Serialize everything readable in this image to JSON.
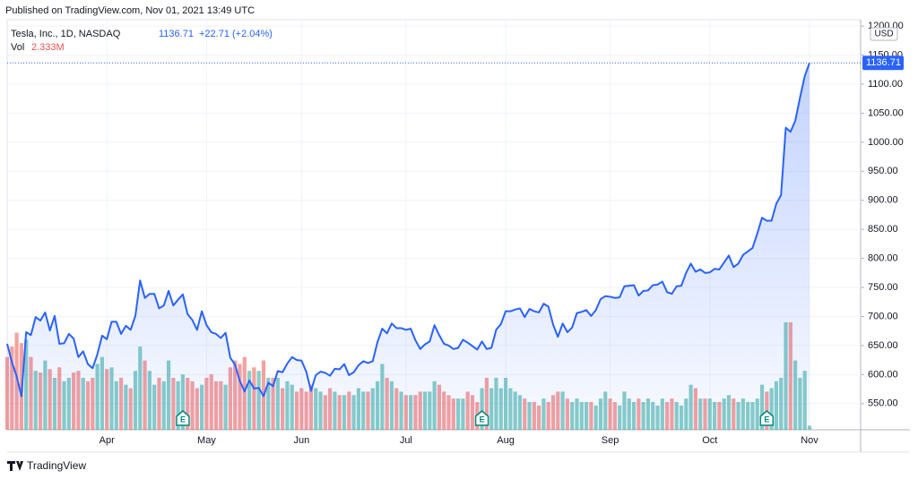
{
  "chart_data": {
    "type": "line",
    "published": "Published on TradingView.com, Nov 01, 2021 13:49 UTC",
    "symbol": "Tesla, Inc., 1D, NASDAQ",
    "change": "+22.71 (+2.04%)",
    "volume_title": "Vol",
    "volume_label": "2.333M",
    "currency": "USD",
    "earnings_marker": "E",
    "brand": "TradingView",
    "categories": [
      null,
      null,
      null,
      null,
      null,
      null,
      null,
      null,
      null,
      null,
      null,
      null,
      null,
      null,
      null,
      null,
      null,
      null,
      null,
      null,
      null,
      "Apr",
      null,
      null,
      null,
      null,
      null,
      null,
      null,
      null,
      null,
      null,
      null,
      null,
      null,
      null,
      null,
      null,
      null,
      null,
      null,
      null,
      "May",
      null,
      null,
      null,
      null,
      null,
      null,
      null,
      null,
      null,
      null,
      null,
      null,
      null,
      null,
      null,
      null,
      null,
      null,
      null,
      "Jun",
      null,
      null,
      null,
      null,
      null,
      null,
      null,
      null,
      null,
      null,
      null,
      null,
      null,
      null,
      null,
      null,
      null,
      null,
      null,
      null,
      null,
      "Jul",
      null,
      null,
      null,
      null,
      null,
      null,
      null,
      null,
      null,
      null,
      null,
      null,
      null,
      null,
      null,
      null,
      null,
      null,
      null,
      null,
      "Aug",
      null,
      null,
      null,
      null,
      null,
      null,
      null,
      null,
      null,
      null,
      null,
      null,
      null,
      null,
      null,
      null,
      null,
      null,
      null,
      null,
      null,
      "Sep",
      null,
      null,
      null,
      null,
      null,
      null,
      null,
      null,
      null,
      null,
      null,
      null,
      null,
      null,
      null,
      null,
      null,
      null,
      null,
      null,
      "Oct",
      null,
      null,
      null,
      null,
      null,
      null,
      null,
      null,
      null,
      null,
      null,
      null,
      null,
      null,
      null,
      null,
      null,
      null,
      null,
      null,
      "Nov"
    ],
    "series": [
      {
        "name": "Tesla, Inc.",
        "color": "#2962ff",
        "values": [
          653,
          621,
          597,
          563,
          673,
          668,
          699,
          693,
          707,
          676,
          701,
          653,
          654,
          670,
          662,
          630,
          640,
          618,
          611,
          635,
          667,
          661,
          691,
          691,
          670,
          684,
          677,
          701,
          762,
          732,
          739,
          739,
          714,
          719,
          744,
          719,
          729,
          738,
          704,
          694,
          677,
          709,
          685,
          673,
          670,
          663,
          672,
          629,
          617,
          589,
          571,
          590,
          576,
          577,
          563,
          586,
          580,
          606,
          604,
          619,
          630,
          625,
          624,
          605,
          572,
          599,
          605,
          603,
          598,
          610,
          609,
          618,
          599,
          604,
          616,
          623,
          620,
          623,
          656,
          679,
          671,
          688,
          680,
          680,
          677,
          679,
          659,
          644,
          652,
          657,
          685,
          668,
          653,
          650,
          644,
          646,
          660,
          655,
          649,
          643,
          657,
          644,
          646,
          677,
          687,
          709,
          709,
          712,
          714,
          699,
          713,
          709,
          707,
          722,
          717,
          686,
          665,
          688,
          673,
          681,
          706,
          708,
          711,
          701,
          711,
          730,
          735,
          734,
          732,
          733,
          752,
          753,
          754,
          736,
          744,
          745,
          754,
          755,
          760,
          742,
          739,
          752,
          753,
          775,
          791,
          777,
          781,
          775,
          776,
          782,
          781,
          793,
          805,
          785,
          791,
          806,
          812,
          818,
          843,
          870,
          865,
          865,
          894,
          909,
          1025,
          1018,
          1037,
          1077,
          1114,
          1136.71
        ]
      },
      {
        "name": "Vol",
        "up_color": "#26a69a",
        "down_color": "#ef5350",
        "values": [
          42,
          48,
          56,
          50,
          52,
          42,
          34,
          33,
          40,
          35,
          30,
          36,
          28,
          30,
          33,
          34,
          30,
          28,
          30,
          38,
          42,
          35,
          36,
          28,
          30,
          26,
          24,
          34,
          48,
          40,
          34,
          26,
          30,
          28,
          40,
          30,
          28,
          32,
          30,
          28,
          24,
          26,
          30,
          32,
          28,
          28,
          26,
          36,
          40,
          38,
          42,
          34,
          36,
          34,
          40,
          30,
          30,
          30,
          24,
          28,
          26,
          22,
          24,
          22,
          26,
          24,
          22,
          20,
          24,
          22,
          20,
          20,
          22,
          20,
          24,
          22,
          22,
          24,
          28,
          38,
          30,
          28,
          24,
          22,
          20,
          20,
          20,
          22,
          22,
          22,
          28,
          26,
          22,
          20,
          18,
          18,
          18,
          22,
          20,
          16,
          24,
          30,
          24,
          30,
          24,
          30,
          24,
          22,
          20,
          18,
          16,
          16,
          14,
          18,
          16,
          20,
          22,
          22,
          18,
          16,
          18,
          16,
          16,
          16,
          14,
          18,
          22,
          18,
          16,
          14,
          22,
          18,
          16,
          18,
          16,
          18,
          16,
          14,
          18,
          16,
          18,
          16,
          14,
          18,
          26,
          24,
          18,
          18,
          18,
          16,
          16,
          18,
          20,
          18,
          16,
          18,
          16,
          16,
          18,
          26,
          22,
          24,
          28,
          30,
          62,
          62,
          40,
          30,
          34,
          2.333
        ]
      }
    ],
    "ylim": [
      505,
      1211
    ],
    "yticks": [
      {
        "value": 550,
        "label": "550.00"
      },
      {
        "value": 600,
        "label": "600.00"
      },
      {
        "value": 650,
        "label": "650.00"
      },
      {
        "value": 700,
        "label": "700.00"
      },
      {
        "value": 750,
        "label": "750.00"
      },
      {
        "value": 800,
        "label": "800.00"
      },
      {
        "value": 850,
        "label": "850.00"
      },
      {
        "value": 900,
        "label": "900.00"
      },
      {
        "value": 950,
        "label": "950.00"
      },
      {
        "value": 1000,
        "label": "1000.00"
      },
      {
        "value": 1050,
        "label": "1050.00"
      },
      {
        "value": 1100,
        "label": "1100.00"
      },
      {
        "value": 1150,
        "label": "1150.00"
      },
      {
        "value": 1200,
        "label": "1200.00"
      }
    ],
    "grid": true
  }
}
